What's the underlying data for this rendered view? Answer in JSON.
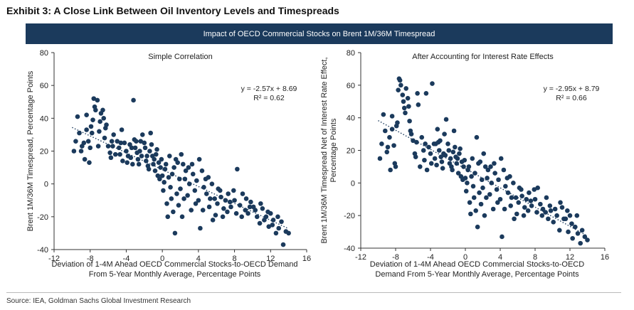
{
  "exhibit_title": "Exhibit 3: A Close Link Between Oil Inventory Levels and Timespreads",
  "banner": "Impact of OECD Commercial Stocks on Brent 1M/36M Timespread",
  "source": "Source: IEA, Goldman Sachs Global Investment Research",
  "colors": {
    "banner_bg": "#1b3a5c",
    "points": "#1b3a5c",
    "trend": "#1b3a5c"
  },
  "chart_data": [
    {
      "type": "scatter",
      "title": "Simple Correlation",
      "xlabel_lines": [
        "Deviation of 1-4M Ahead OECD Commercial Stocks-to-OECD Demand",
        "From 5-Year Monthly Average, Percentage Points"
      ],
      "ylabel_lines": [
        "Brent 1M/36M Timespread, Percentage Points"
      ],
      "xlim": [
        -12,
        16
      ],
      "ylim": [
        -40,
        80
      ],
      "xticks": [
        -12,
        -8,
        -4,
        0,
        4,
        8,
        12,
        16
      ],
      "yticks": [
        -40,
        -20,
        0,
        20,
        40,
        60,
        80
      ],
      "equation": "y = -2.57x + 8.69",
      "r2": "R² = 0.62",
      "trend": {
        "slope": -2.57,
        "intercept": 8.69,
        "x_range": [
          -10,
          14
        ]
      },
      "grid": false,
      "points": [
        [
          -9.8,
          20
        ],
        [
          -9.6,
          26
        ],
        [
          -9.4,
          41
        ],
        [
          -9.2,
          31
        ],
        [
          -8.9,
          23
        ],
        [
          -8.6,
          15
        ],
        [
          -8.4,
          42
        ],
        [
          -8.2,
          26
        ],
        [
          -8.0,
          22
        ],
        [
          -8.1,
          13
        ],
        [
          -7.9,
          35
        ],
        [
          -7.7,
          39
        ],
        [
          -7.6,
          52
        ],
        [
          -7.5,
          47
        ],
        [
          -7.4,
          45
        ],
        [
          -7.2,
          51
        ],
        [
          -7.1,
          23
        ],
        [
          -7.0,
          32
        ],
        [
          -6.8,
          43
        ],
        [
          -6.6,
          45
        ],
        [
          -6.5,
          40
        ],
        [
          -6.4,
          28
        ],
        [
          -6.2,
          36
        ],
        [
          -6.0,
          23
        ],
        [
          -5.8,
          19
        ],
        [
          -5.7,
          16
        ],
        [
          -5.5,
          23
        ],
        [
          -5.4,
          30
        ],
        [
          -5.2,
          18
        ],
        [
          -5.0,
          26
        ],
        [
          -4.8,
          22
        ],
        [
          -4.7,
          18
        ],
        [
          -4.5,
          33
        ],
        [
          -4.4,
          14
        ],
        [
          -4.2,
          25
        ],
        [
          -4.0,
          20
        ],
        [
          -3.9,
          13
        ],
        [
          -3.8,
          17
        ],
        [
          -3.6,
          24
        ],
        [
          -3.5,
          16
        ],
        [
          -3.3,
          12
        ],
        [
          -3.2,
          51
        ],
        [
          -3.1,
          27
        ],
        [
          -3.0,
          22
        ],
        [
          -2.8,
          19
        ],
        [
          -2.7,
          15
        ],
        [
          -2.6,
          12
        ],
        [
          -2.4,
          26
        ],
        [
          -2.3,
          17
        ],
        [
          -2.2,
          30
        ],
        [
          -2.0,
          25
        ],
        [
          -1.9,
          22
        ],
        [
          -1.8,
          14
        ],
        [
          -1.6,
          11
        ],
        [
          -1.5,
          9
        ],
        [
          -1.4,
          20
        ],
        [
          -1.3,
          31
        ],
        [
          -1.1,
          17
        ],
        [
          -1.0,
          12
        ],
        [
          -0.9,
          15
        ],
        [
          -0.8,
          8
        ],
        [
          -0.6,
          21
        ],
        [
          -0.5,
          5
        ],
        [
          -0.4,
          13
        ],
        [
          -0.3,
          3
        ],
        [
          -0.2,
          10
        ],
        [
          0.0,
          5
        ],
        [
          0.1,
          -4
        ],
        [
          0.2,
          1
        ],
        [
          0.3,
          9
        ],
        [
          0.5,
          -12
        ],
        [
          0.6,
          -20
        ],
        [
          0.7,
          4
        ],
        [
          0.9,
          -2
        ],
        [
          1.0,
          -9
        ],
        [
          1.1,
          6
        ],
        [
          1.2,
          -17
        ],
        [
          1.4,
          -30
        ],
        [
          1.5,
          15
        ],
        [
          1.6,
          -6
        ],
        [
          1.8,
          -13
        ],
        [
          1.9,
          3
        ],
        [
          2.0,
          -3
        ],
        [
          2.2,
          -20
        ],
        [
          2.3,
          12
        ],
        [
          2.4,
          -9
        ],
        [
          2.6,
          8
        ],
        [
          2.8,
          -7
        ],
        [
          3.0,
          0
        ],
        [
          3.2,
          -16
        ],
        [
          3.4,
          6
        ],
        [
          3.6,
          -4
        ],
        [
          3.8,
          2
        ],
        [
          4.0,
          -10
        ],
        [
          4.2,
          -27
        ],
        [
          4.4,
          8
        ],
        [
          4.6,
          -2
        ],
        [
          4.9,
          -6
        ],
        [
          5.2,
          -14
        ],
        [
          5.5,
          0
        ],
        [
          5.8,
          -9
        ],
        [
          6.1,
          -12
        ],
        [
          6.4,
          -4
        ],
        [
          6.7,
          -20
        ],
        [
          7.0,
          -10
        ],
        [
          7.3,
          -6
        ],
        [
          7.6,
          -14
        ],
        [
          8.0,
          -10
        ],
        [
          8.3,
          9
        ],
        [
          8.6,
          -13
        ],
        [
          8.9,
          -6
        ],
        [
          9.2,
          -16
        ],
        [
          9.5,
          -18
        ],
        [
          9.8,
          -11
        ],
        [
          10.1,
          -14
        ],
        [
          10.5,
          -20
        ],
        [
          10.8,
          -24
        ],
        [
          11.1,
          -15
        ],
        [
          11.5,
          -20
        ],
        [
          11.8,
          -26
        ],
        [
          12.0,
          -18
        ],
        [
          12.3,
          -22
        ],
        [
          12.6,
          -30
        ],
        [
          12.9,
          -27
        ],
        [
          13.2,
          -23
        ],
        [
          13.4,
          -37
        ],
        [
          13.7,
          -29
        ],
        [
          14.0,
          -30
        ],
        [
          -9.0,
          20
        ],
        [
          -8.7,
          25
        ],
        [
          -8.4,
          33
        ],
        [
          -7.8,
          31
        ],
        [
          -6.9,
          38
        ],
        [
          -6.3,
          34
        ],
        [
          -5.6,
          26
        ],
        [
          -4.6,
          25
        ],
        [
          -3.4,
          22
        ],
        [
          -2.9,
          26
        ],
        [
          -2.5,
          20
        ],
        [
          -1.7,
          17
        ],
        [
          -1.2,
          24
        ],
        [
          -0.7,
          18
        ],
        [
          -0.1,
          15
        ],
        [
          0.4,
          12
        ],
        [
          0.8,
          17
        ],
        [
          1.3,
          10
        ],
        [
          1.7,
          13
        ],
        [
          2.1,
          18
        ],
        [
          2.5,
          3
        ],
        [
          2.9,
          10
        ],
        [
          3.3,
          12
        ],
        [
          3.7,
          -12
        ],
        [
          4.1,
          15
        ],
        [
          4.5,
          -16
        ],
        [
          4.8,
          3
        ],
        [
          5.1,
          4
        ],
        [
          5.3,
          -9
        ],
        [
          5.6,
          -22
        ],
        [
          5.9,
          -19
        ],
        [
          6.2,
          -3
        ],
        [
          6.5,
          -8
        ],
        [
          6.8,
          -15
        ],
        [
          7.2,
          -17
        ],
        [
          7.5,
          -11
        ],
        [
          7.9,
          -4
        ],
        [
          8.2,
          -18
        ],
        [
          8.8,
          -20
        ],
        [
          9.3,
          -9
        ],
        [
          9.7,
          -14
        ],
        [
          10.3,
          -16
        ],
        [
          10.9,
          -12
        ],
        [
          11.3,
          -22
        ],
        [
          11.7,
          -17
        ],
        [
          12.2,
          -25
        ],
        [
          12.8,
          -20
        ]
      ]
    },
    {
      "type": "scatter",
      "title": "After Accounting for Interest Rate Effects",
      "xlabel_lines": [
        "Deviation of 1-4M Ahead OECD Commercial Stocks-to-OECD",
        "Demand From 5-Year Monthly Average, Percentage Points"
      ],
      "ylabel_lines": [
        "Brent 1M/36M Timespread Net of Interest Rate Effect,",
        "Percentage Points"
      ],
      "xlim": [
        -12,
        16
      ],
      "ylim": [
        -40,
        80
      ],
      "xticks": [
        -12,
        -8,
        -4,
        0,
        4,
        8,
        12,
        16
      ],
      "yticks": [
        -40,
        -20,
        0,
        20,
        40,
        60,
        80
      ],
      "equation": "y = -2.95x + 8.79",
      "r2": "R² = 0.66",
      "trend": {
        "slope": -2.95,
        "intercept": 8.79,
        "x_range": [
          -10,
          14
        ]
      },
      "grid": false,
      "points": [
        [
          -9.8,
          15
        ],
        [
          -9.6,
          24
        ],
        [
          -9.4,
          42
        ],
        [
          -9.2,
          32
        ],
        [
          -8.9,
          22
        ],
        [
          -8.6,
          8
        ],
        [
          -8.4,
          41
        ],
        [
          -8.2,
          23
        ],
        [
          -8.0,
          10
        ],
        [
          -8.1,
          12
        ],
        [
          -7.9,
          35
        ],
        [
          -7.7,
          57
        ],
        [
          -7.6,
          64
        ],
        [
          -7.5,
          63
        ],
        [
          -7.4,
          60
        ],
        [
          -7.2,
          54
        ],
        [
          -7.1,
          50
        ],
        [
          -7.0,
          46
        ],
        [
          -6.8,
          58
        ],
        [
          -6.6,
          52
        ],
        [
          -6.5,
          47
        ],
        [
          -6.4,
          38
        ],
        [
          -6.2,
          30
        ],
        [
          -6.0,
          26
        ],
        [
          -5.8,
          18
        ],
        [
          -5.7,
          16
        ],
        [
          -5.5,
          55
        ],
        [
          -5.4,
          48
        ],
        [
          -5.2,
          10
        ],
        [
          -5.0,
          28
        ],
        [
          -4.8,
          20
        ],
        [
          -4.7,
          14
        ],
        [
          -4.5,
          55
        ],
        [
          -4.4,
          8
        ],
        [
          -4.2,
          22
        ],
        [
          -4.0,
          18
        ],
        [
          -3.9,
          12
        ],
        [
          -3.8,
          61
        ],
        [
          -3.6,
          24
        ],
        [
          -3.5,
          15
        ],
        [
          -3.3,
          11
        ],
        [
          -3.2,
          33
        ],
        [
          -3.1,
          25
        ],
        [
          -3.0,
          20
        ],
        [
          -2.8,
          16
        ],
        [
          -2.7,
          13
        ],
        [
          -2.6,
          9
        ],
        [
          -2.4,
          30
        ],
        [
          -2.3,
          17
        ],
        [
          -2.2,
          39
        ],
        [
          -2.0,
          24
        ],
        [
          -1.9,
          20
        ],
        [
          -1.8,
          12
        ],
        [
          -1.6,
          10
        ],
        [
          -1.5,
          8
        ],
        [
          -1.4,
          19
        ],
        [
          -1.3,
          32
        ],
        [
          -1.1,
          16
        ],
        [
          -1.0,
          12
        ],
        [
          -0.9,
          15
        ],
        [
          -0.8,
          6
        ],
        [
          -0.6,
          21
        ],
        [
          -0.5,
          4
        ],
        [
          -0.4,
          13
        ],
        [
          -0.3,
          2
        ],
        [
          -0.2,
          10
        ],
        [
          0.0,
          3
        ],
        [
          0.1,
          -5
        ],
        [
          0.2,
          0
        ],
        [
          0.3,
          8
        ],
        [
          0.5,
          -12
        ],
        [
          0.6,
          -19
        ],
        [
          0.7,
          4
        ],
        [
          0.9,
          -2
        ],
        [
          1.0,
          -9
        ],
        [
          1.1,
          6
        ],
        [
          1.2,
          -17
        ],
        [
          1.4,
          -27
        ],
        [
          1.5,
          12
        ],
        [
          1.6,
          -6
        ],
        [
          1.8,
          -13
        ],
        [
          1.9,
          2
        ],
        [
          2.0,
          -3
        ],
        [
          2.2,
          -20
        ],
        [
          2.3,
          10
        ],
        [
          2.4,
          -9
        ],
        [
          2.6,
          8
        ],
        [
          2.8,
          -7
        ],
        [
          3.0,
          0
        ],
        [
          3.2,
          -16
        ],
        [
          3.4,
          6
        ],
        [
          3.6,
          -4
        ],
        [
          3.8,
          2
        ],
        [
          4.0,
          -10
        ],
        [
          4.2,
          -33
        ],
        [
          4.4,
          8
        ],
        [
          4.6,
          -2
        ],
        [
          4.9,
          -6
        ],
        [
          5.2,
          -14
        ],
        [
          5.5,
          0
        ],
        [
          5.8,
          -9
        ],
        [
          6.1,
          -12
        ],
        [
          6.4,
          -4
        ],
        [
          6.7,
          -20
        ],
        [
          7.0,
          -10
        ],
        [
          7.3,
          -6
        ],
        [
          7.6,
          -14
        ],
        [
          8.0,
          -10
        ],
        [
          8.3,
          -3
        ],
        [
          8.6,
          -13
        ],
        [
          8.9,
          -16
        ],
        [
          9.2,
          -18
        ],
        [
          9.5,
          -22
        ],
        [
          9.8,
          -17
        ],
        [
          10.1,
          -24
        ],
        [
          10.5,
          -20
        ],
        [
          10.8,
          -29
        ],
        [
          11.1,
          -15
        ],
        [
          11.5,
          -22
        ],
        [
          11.8,
          -30
        ],
        [
          12.0,
          -20
        ],
        [
          12.3,
          -34
        ],
        [
          12.6,
          -27
        ],
        [
          12.9,
          -31
        ],
        [
          13.2,
          -37
        ],
        [
          13.4,
          -29
        ],
        [
          13.7,
          -33
        ],
        [
          14.0,
          -35
        ],
        [
          -9.0,
          19
        ],
        [
          -8.7,
          28
        ],
        [
          -8.4,
          33
        ],
        [
          -7.8,
          37
        ],
        [
          -6.9,
          43
        ],
        [
          -6.3,
          32
        ],
        [
          -5.6,
          25
        ],
        [
          -4.6,
          24
        ],
        [
          -3.4,
          24
        ],
        [
          -2.9,
          26
        ],
        [
          -2.5,
          18
        ],
        [
          -1.7,
          15
        ],
        [
          -1.2,
          22
        ],
        [
          -0.7,
          18
        ],
        [
          -0.1,
          14
        ],
        [
          0.4,
          10
        ],
        [
          0.8,
          15
        ],
        [
          1.3,
          28
        ],
        [
          1.7,
          13
        ],
        [
          2.1,
          18
        ],
        [
          2.5,
          3
        ],
        [
          2.9,
          10
        ],
        [
          3.3,
          12
        ],
        [
          3.7,
          -12
        ],
        [
          4.1,
          15
        ],
        [
          4.5,
          -16
        ],
        [
          4.8,
          3
        ],
        [
          5.1,
          4
        ],
        [
          5.3,
          -9
        ],
        [
          5.6,
          -22
        ],
        [
          5.9,
          -19
        ],
        [
          6.2,
          -3
        ],
        [
          6.5,
          -8
        ],
        [
          6.8,
          -15
        ],
        [
          7.2,
          -17
        ],
        [
          7.5,
          -11
        ],
        [
          7.9,
          -4
        ],
        [
          8.2,
          -18
        ],
        [
          8.8,
          -20
        ],
        [
          9.3,
          -9
        ],
        [
          9.7,
          -14
        ],
        [
          10.3,
          -16
        ],
        [
          10.9,
          -12
        ],
        [
          11.3,
          -22
        ],
        [
          11.7,
          -17
        ],
        [
          12.2,
          -25
        ],
        [
          12.8,
          -20
        ]
      ]
    }
  ]
}
